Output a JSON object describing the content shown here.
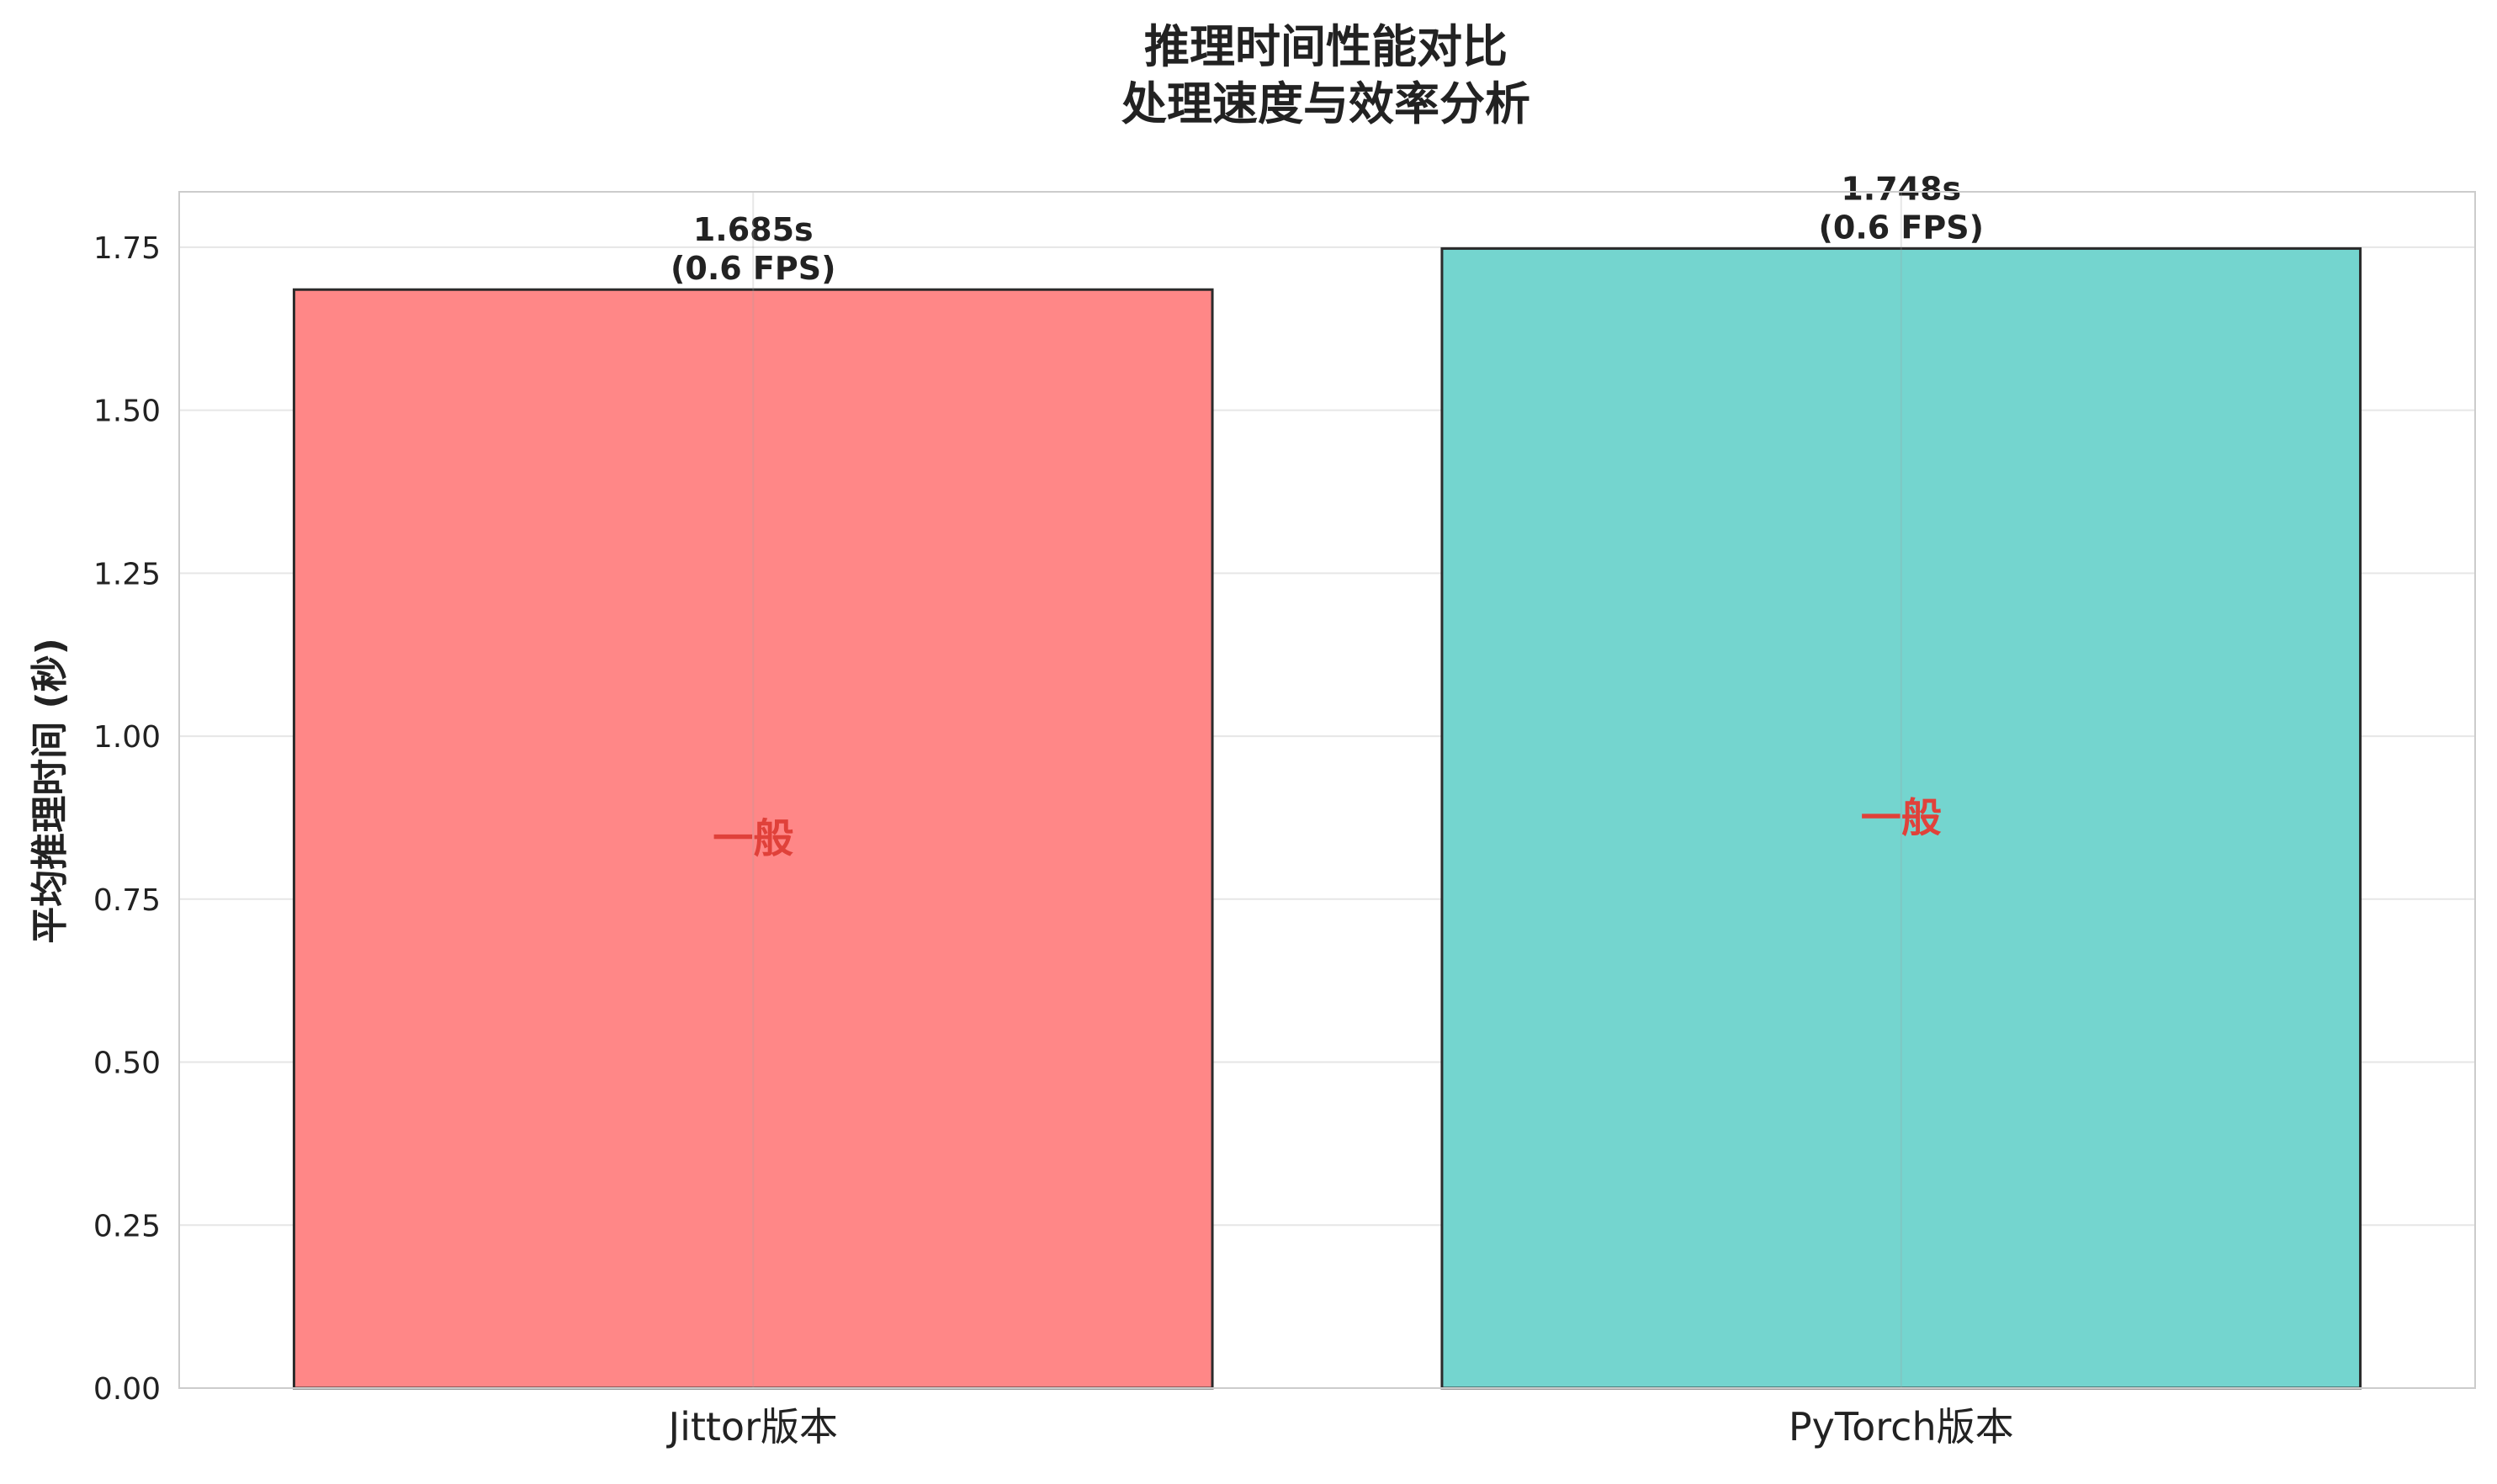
{
  "chart_data": {
    "type": "bar",
    "title": [
      "推理时间性能对比",
      "处理速度与效率分析"
    ],
    "ylabel": "平均推理时间 (秒)",
    "xlabel": "",
    "categories": [
      "Jittor版本",
      "PyTorch版本"
    ],
    "values": [
      1.685,
      1.748
    ],
    "value_labels": [
      "1.685s",
      "1.748s"
    ],
    "fps_labels": [
      "(0.6 FPS)",
      "(0.6 FPS)"
    ],
    "rating_labels": [
      "一般",
      "一般"
    ],
    "bar_colors": [
      "#ff8787",
      "#74d5cf"
    ],
    "rating_color": "#e0413a",
    "ylim": [
      0,
      1.835
    ],
    "yticks": [
      "0.00",
      "0.25",
      "0.50",
      "0.75",
      "1.00",
      "1.25",
      "1.50",
      "1.75"
    ],
    "grid": true,
    "legend": "none"
  }
}
